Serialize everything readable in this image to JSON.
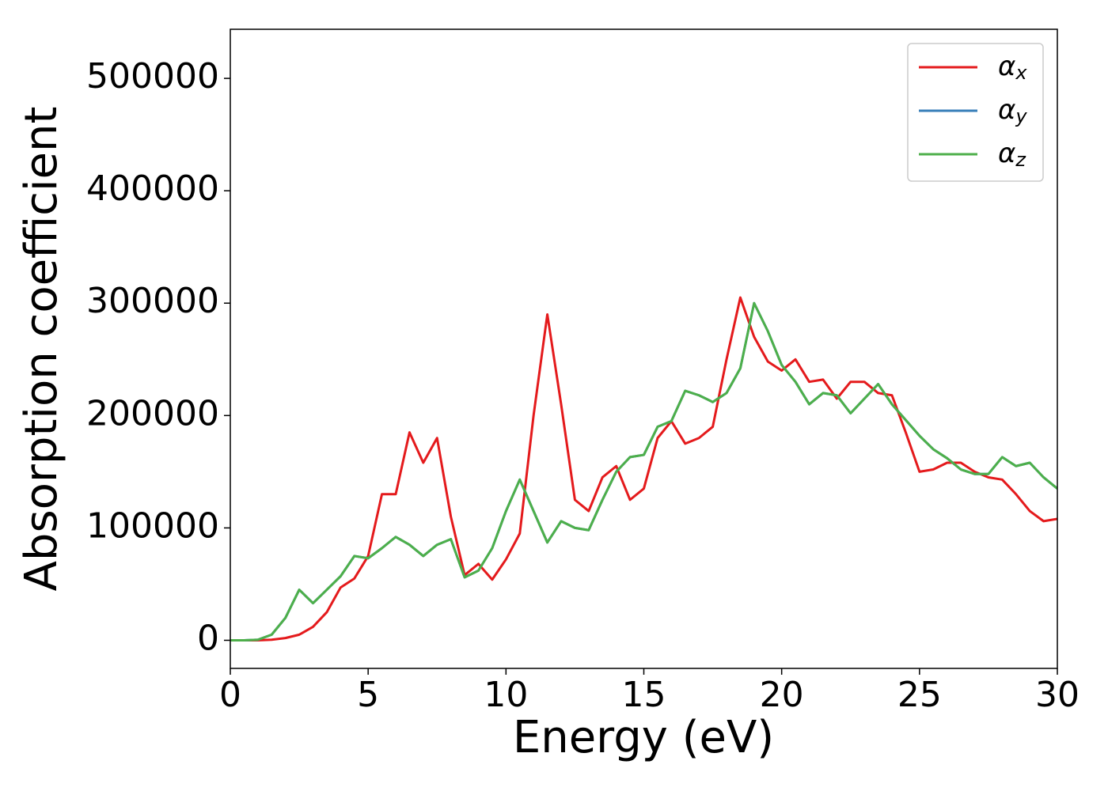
{
  "chart_data": {
    "type": "line",
    "xlabel": "Energy (eV)",
    "ylabel": "Absorption coefficient",
    "x": [
      0,
      0.5,
      1,
      1.5,
      2,
      2.5,
      3,
      3.5,
      4,
      4.5,
      5,
      5.5,
      6,
      6.5,
      7,
      7.5,
      8,
      8.5,
      9,
      9.5,
      10,
      10.5,
      11,
      11.5,
      12,
      12.5,
      13,
      13.5,
      14,
      14.5,
      15,
      15.5,
      16,
      16.5,
      17,
      17.5,
      18,
      18.5,
      19,
      19.5,
      20,
      20.5,
      21,
      21.5,
      22,
      22.5,
      23,
      23.5,
      24,
      24.5,
      25,
      25.5,
      26,
      26.5,
      27,
      27.5,
      28,
      28.5,
      29,
      29.5,
      30
    ],
    "series": [
      {
        "name": "αx",
        "color": "#e41a1c",
        "values": [
          0,
          0,
          0,
          500,
          2000,
          5000,
          12000,
          25000,
          47000,
          55000,
          75000,
          130000,
          130000,
          185000,
          158000,
          180000,
          110000,
          58000,
          68000,
          54000,
          72000,
          95000,
          200000,
          290000,
          210000,
          125000,
          115000,
          145000,
          155000,
          125000,
          135000,
          180000,
          195000,
          175000,
          180000,
          190000,
          250000,
          305000,
          270000,
          248000,
          240000,
          250000,
          230000,
          232000,
          215000,
          230000,
          230000,
          220000,
          218000,
          185000,
          150000,
          152000,
          158000,
          158000,
          150000,
          145000,
          143000,
          130000,
          115000,
          106000,
          108000
        ]
      },
      {
        "name": "αy",
        "color": "#377eb8",
        "values": [
          0,
          0,
          500,
          5000,
          20000,
          45000,
          33000,
          45000,
          57000,
          75000,
          73000,
          82000,
          92000,
          85000,
          75000,
          85000,
          90000,
          56000,
          62000,
          82000,
          115000,
          143000,
          115000,
          87000,
          106000,
          100000,
          98000,
          125000,
          150000,
          163000,
          165000,
          190000,
          195000,
          222000,
          218000,
          212000,
          220000,
          242000,
          300000,
          275000,
          245000,
          230000,
          210000,
          220000,
          218000,
          202000,
          215000,
          228000,
          210000,
          196000,
          182000,
          170000,
          162000,
          152000,
          148000,
          148000,
          163000,
          155000,
          158000,
          145000,
          135000
        ]
      },
      {
        "name": "αz",
        "color": "#4daf4a",
        "values": [
          0,
          0,
          500,
          5000,
          20000,
          45000,
          33000,
          45000,
          57000,
          75000,
          73000,
          82000,
          92000,
          85000,
          75000,
          85000,
          90000,
          56000,
          62000,
          82000,
          115000,
          143000,
          115000,
          87000,
          106000,
          100000,
          98000,
          125000,
          150000,
          163000,
          165000,
          190000,
          195000,
          222000,
          218000,
          212000,
          220000,
          242000,
          300000,
          275000,
          245000,
          230000,
          210000,
          220000,
          218000,
          202000,
          215000,
          228000,
          210000,
          196000,
          182000,
          170000,
          162000,
          152000,
          148000,
          148000,
          163000,
          155000,
          158000,
          145000,
          135000
        ]
      }
    ],
    "xlim": [
      0,
      30
    ],
    "ylim": [
      -25000,
      543700
    ],
    "xticks": [
      0,
      5,
      10,
      15,
      20,
      25,
      30
    ],
    "yticks": [
      0,
      100000,
      200000,
      300000,
      400000,
      500000
    ],
    "legend": "upper right"
  }
}
